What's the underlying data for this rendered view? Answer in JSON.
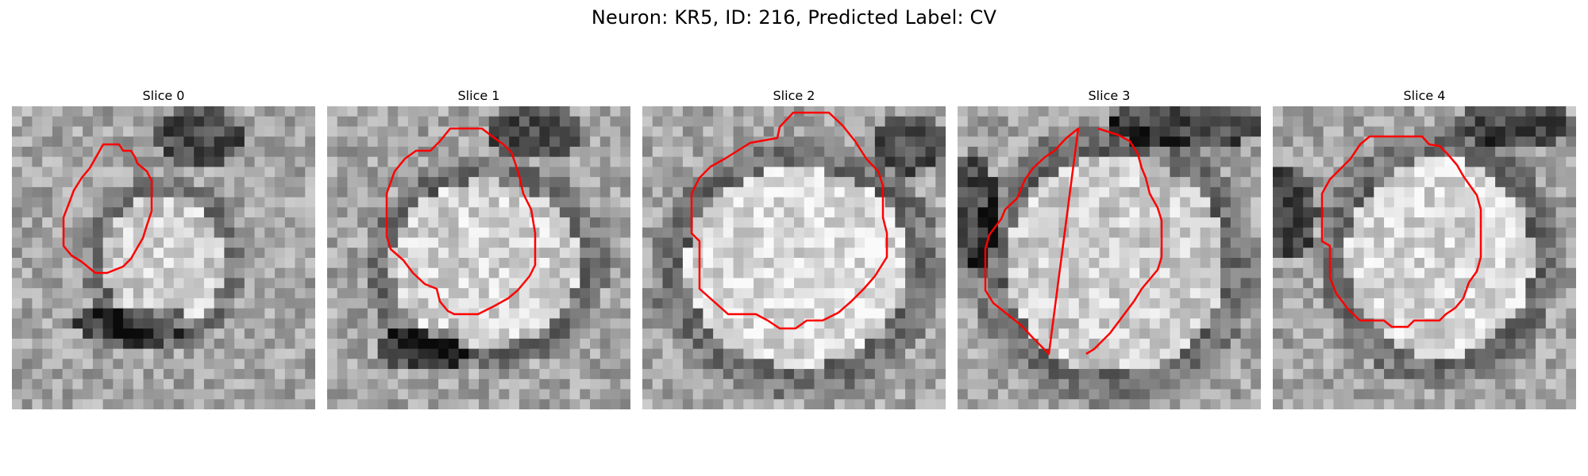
{
  "figure": {
    "title": "Neuron: KR5, ID: 216, Predicted Label: CV"
  },
  "panels": [
    {
      "label": "Slice 0"
    },
    {
      "label": "Slice 1"
    },
    {
      "label": "Slice 2"
    },
    {
      "label": "Slice 3"
    },
    {
      "label": "Slice 4"
    }
  ],
  "colors": {
    "contour": "#ff0000",
    "background": "#ffffff"
  }
}
